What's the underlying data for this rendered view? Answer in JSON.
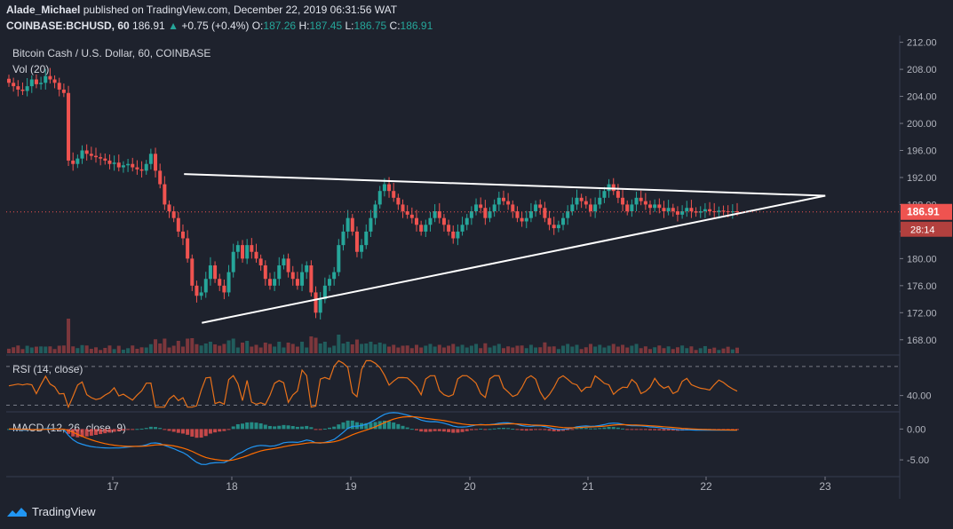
{
  "header": {
    "publisher": "Alade_Michael",
    "published_text": "published on TradingView.com, December 22, 2019 06:31:56 WAT",
    "symbol": "COINBASE:BCHUSD, 60",
    "last": "186.91",
    "change": "+0.75 (+0.4%)",
    "o_label": "O:",
    "o_value": "187.26",
    "h_label": "H:",
    "h_value": "187.45",
    "l_label": "L:",
    "l_value": "186.75",
    "c_label": "C:",
    "c_value": "186.91"
  },
  "legend": {
    "main": "Bitcoin Cash / U.S. Dollar, 60, COINBASE",
    "vol": "Vol (20)",
    "rsi": "RSI (14, close)",
    "macd": "MACD (12, 26, close, 9)"
  },
  "price_axis": {
    "ticks": [
      "212.00",
      "208.00",
      "204.00",
      "200.00",
      "196.00",
      "192.00",
      "188.00",
      "184.00",
      "180.00",
      "176.00",
      "172.00",
      "168.00"
    ],
    "current_price": "186.91",
    "countdown": "28:14"
  },
  "rsi_axis": {
    "ticks": [
      "40.00"
    ]
  },
  "macd_axis": {
    "ticks": [
      "0.00",
      "-5.00"
    ]
  },
  "time_axis": {
    "ticks": [
      "17",
      "18",
      "19",
      "20",
      "21",
      "22",
      "23"
    ]
  },
  "footer": {
    "brand": "TradingView"
  },
  "colors": {
    "up": "#26a69a",
    "down": "#ef5350",
    "bg": "#1e222d",
    "rsi": "#e8711a",
    "macd": "#2196f3",
    "signal": "#ff6d00",
    "trendline": "#ffffff"
  },
  "chart_data": {
    "type": "candlestick",
    "interval": "60",
    "price_range": [
      166,
      213
    ],
    "days": [
      "17",
      "18",
      "19",
      "20",
      "21",
      "22",
      "23"
    ],
    "candles_close": [
      206,
      205.5,
      205,
      204.8,
      205.5,
      206.5,
      205.8,
      206,
      207,
      206.5,
      206,
      205,
      204.5,
      194.5,
      194,
      194.8,
      196,
      195.5,
      195.2,
      195,
      194.8,
      194.5,
      194,
      194.2,
      193.5,
      193.8,
      194,
      193.5,
      193.2,
      193,
      194,
      195.5,
      193,
      191,
      188,
      187,
      186,
      184,
      183,
      180,
      176,
      174.5,
      175,
      177,
      179,
      177,
      176,
      175,
      178,
      181,
      182,
      180,
      182,
      181,
      180,
      179,
      177,
      176,
      177,
      179,
      180,
      178,
      177,
      176,
      178,
      179,
      175,
      172,
      174,
      176,
      177,
      178,
      182,
      184,
      186,
      184,
      181,
      182,
      184,
      186,
      188,
      190,
      191,
      190,
      189,
      188,
      187,
      186.5,
      186,
      185,
      184,
      185,
      186,
      187,
      186,
      185,
      184,
      183,
      184,
      185,
      186,
      187,
      188,
      187.5,
      186,
      187,
      188,
      189,
      188.5,
      188,
      187,
      186,
      185.5,
      186,
      187,
      188,
      187.5,
      186,
      185,
      184.5,
      185,
      186,
      187,
      188,
      189,
      188.5,
      188,
      187,
      188,
      189,
      190,
      191,
      190,
      189,
      188,
      187,
      188,
      189,
      188.5,
      188,
      187.5,
      188,
      187.5,
      187,
      187.5,
      187,
      186.5,
      187,
      187.5,
      187,
      186.8,
      187,
      187.3,
      187,
      186.9,
      187.1,
      187,
      186.9,
      187,
      186.91
    ],
    "trendlines": [
      {
        "from": [
          "17.6",
          192.5
        ],
        "to": [
          "23.0",
          189.3
        ]
      },
      {
        "from": [
          "17.75",
          170.5
        ],
        "to": [
          "23.0",
          189.3
        ]
      }
    ],
    "rsi_range": [
      25,
      80
    ],
    "macd_range": [
      -7,
      2.5
    ]
  }
}
